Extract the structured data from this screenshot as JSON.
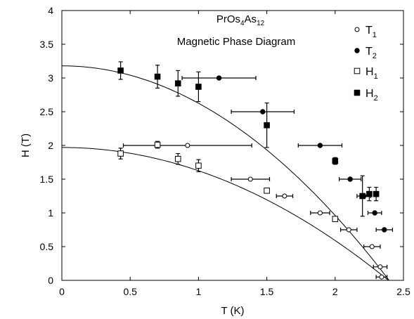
{
  "chart_data": {
    "type": "scatter",
    "title_line1_main": "PrOs",
    "title_line1_sub1": "4",
    "title_line1_mid": "As",
    "title_line1_sub2": "12",
    "title_line2": "Magnetic Phase Diagram",
    "xlabel": "T (K)",
    "ylabel": "H (T)",
    "xlim": [
      0,
      2.5
    ],
    "ylim": [
      0,
      4
    ],
    "xticks": [
      "0",
      "0.5",
      "1",
      "1.5",
      "2",
      "2.5"
    ],
    "xtick_values": [
      0,
      0.5,
      1,
      1.5,
      2,
      2.5
    ],
    "yticks": [
      "0",
      "0.5",
      "1",
      "1.5",
      "2",
      "2.5",
      "3",
      "3.5",
      "4"
    ],
    "ytick_values": [
      0,
      0.5,
      1,
      1.5,
      2,
      2.5,
      3,
      3.5,
      4
    ],
    "grid": false,
    "legend_position": "top-right",
    "series": [
      {
        "name_main": "T",
        "name_sub": "1",
        "marker": "open-circle",
        "points": [
          {
            "x": 0.92,
            "y": 2.0,
            "xerr": 0.47,
            "yerr": 0
          },
          {
            "x": 1.38,
            "y": 1.5,
            "xerr": 0.14,
            "yerr": 0
          },
          {
            "x": 1.63,
            "y": 1.25,
            "xerr": 0.06,
            "yerr": 0
          },
          {
            "x": 1.89,
            "y": 1.0,
            "xerr": 0.07,
            "yerr": 0
          },
          {
            "x": 2.1,
            "y": 0.75,
            "xerr": 0.06,
            "yerr": 0
          },
          {
            "x": 2.27,
            "y": 0.5,
            "xerr": 0.06,
            "yerr": 0
          },
          {
            "x": 2.33,
            "y": 0.2,
            "xerr": 0.05,
            "yerr": 0
          },
          {
            "x": 2.34,
            "y": 0.05,
            "xerr": 0.04,
            "yerr": 0
          }
        ]
      },
      {
        "name_main": "T",
        "name_sub": "2",
        "marker": "filled-circle",
        "points": [
          {
            "x": 1.15,
            "y": 3.0,
            "xerr": 0.27,
            "yerr": 0
          },
          {
            "x": 1.47,
            "y": 2.5,
            "xerr": 0.23,
            "yerr": 0
          },
          {
            "x": 1.89,
            "y": 2.0,
            "xerr": 0.16,
            "yerr": 0
          },
          {
            "x": 2.11,
            "y": 1.5,
            "xerr": 0.08,
            "yerr": 0
          },
          {
            "x": 2.21,
            "y": 1.25,
            "xerr": 0.05,
            "yerr": 0
          },
          {
            "x": 2.29,
            "y": 1.0,
            "xerr": 0.05,
            "yerr": 0
          },
          {
            "x": 2.36,
            "y": 0.75,
            "xerr": 0.06,
            "yerr": 0
          }
        ]
      },
      {
        "name_main": "H",
        "name_sub": "1",
        "marker": "open-square",
        "points": [
          {
            "x": 0.43,
            "y": 1.88,
            "xerr": 0,
            "yerr": 0.08
          },
          {
            "x": 0.7,
            "y": 2.01,
            "xerr": 0,
            "yerr": 0.05
          },
          {
            "x": 0.85,
            "y": 1.8,
            "xerr": 0,
            "yerr": 0.08
          },
          {
            "x": 1.0,
            "y": 1.7,
            "xerr": 0,
            "yerr": 0.09
          },
          {
            "x": 1.5,
            "y": 1.33,
            "xerr": 0,
            "yerr": 0
          },
          {
            "x": 2.0,
            "y": 0.91,
            "xerr": 0,
            "yerr": 0
          }
        ]
      },
      {
        "name_main": "H",
        "name_sub": "2",
        "marker": "filled-square",
        "points": [
          {
            "x": 0.43,
            "y": 3.11,
            "xerr": 0,
            "yerr": 0.13
          },
          {
            "x": 0.7,
            "y": 3.02,
            "xerr": 0,
            "yerr": 0.17
          },
          {
            "x": 0.85,
            "y": 2.92,
            "xerr": 0,
            "yerr": 0.19
          },
          {
            "x": 1.0,
            "y": 2.87,
            "xerr": 0,
            "yerr": 0.22
          },
          {
            "x": 1.5,
            "y": 2.3,
            "xerr": 0,
            "yerr": 0.33
          },
          {
            "x": 2.0,
            "y": 1.77,
            "xerr": 0,
            "yerr": 0.05
          },
          {
            "x": 2.2,
            "y": 1.25,
            "xerr": 0,
            "yerr": 0.3
          },
          {
            "x": 2.25,
            "y": 1.28,
            "xerr": 0,
            "yerr": 0.1
          },
          {
            "x": 2.3,
            "y": 1.28,
            "xerr": 0,
            "yerr": 0.1
          }
        ]
      }
    ],
    "fit_curves": [
      {
        "h0": 3.18,
        "tc": 2.395
      },
      {
        "h0": 1.97,
        "tc": 2.39
      }
    ]
  }
}
